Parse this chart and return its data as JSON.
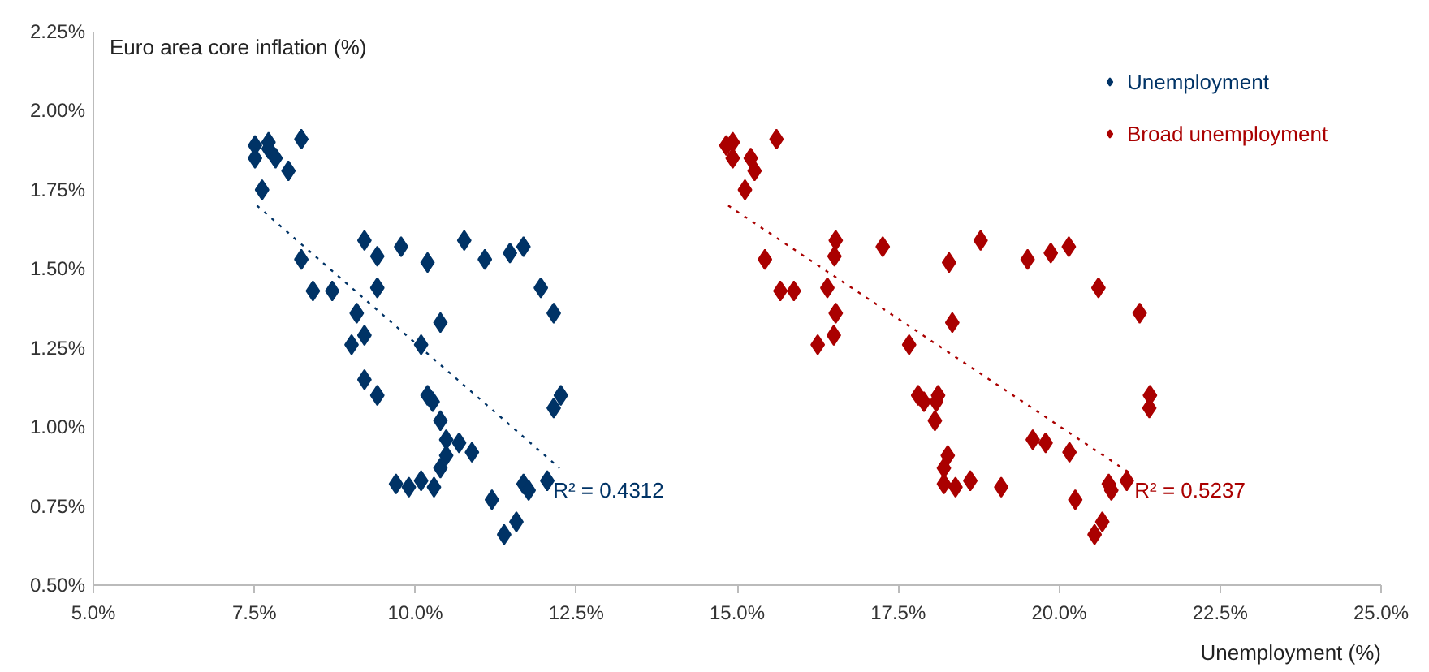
{
  "chart_data": {
    "type": "scatter",
    "xlabel": "Unemployment (%)",
    "ylabel": "Euro area core inflation  (%)",
    "xlim": [
      5,
      25
    ],
    "ylim": [
      0.5,
      2.25
    ],
    "xticks": [
      {
        "value": 5,
        "label": "5.0%"
      },
      {
        "value": 7.5,
        "label": "7.5%"
      },
      {
        "value": 10,
        "label": "10.0%"
      },
      {
        "value": 12.5,
        "label": "12.5%"
      },
      {
        "value": 15,
        "label": "15.0%"
      },
      {
        "value": 17.5,
        "label": "17.5%"
      },
      {
        "value": 20,
        "label": "20.0%"
      },
      {
        "value": 22.5,
        "label": "22.5%"
      },
      {
        "value": 25,
        "label": "25.0%"
      }
    ],
    "yticks": [
      {
        "value": 0.5,
        "label": "0.50%"
      },
      {
        "value": 0.75,
        "label": "0.75%"
      },
      {
        "value": 1.0,
        "label": "1.00%"
      },
      {
        "value": 1.25,
        "label": "1.25%"
      },
      {
        "value": 1.5,
        "label": "1.50%"
      },
      {
        "value": 1.75,
        "label": "1.75%"
      },
      {
        "value": 2.0,
        "label": "2.00%"
      },
      {
        "value": 2.25,
        "label": "2.25%"
      }
    ],
    "grid": false,
    "legend": "top right",
    "series": [
      {
        "name": "Unemployment",
        "color": "#003366",
        "marker": "diamond",
        "x": [
          7.51,
          7.51,
          7.72,
          7.72,
          7.83,
          8.23,
          8.03,
          7.62,
          9.21,
          9.78,
          10.76,
          9.41,
          10.19,
          11.08,
          11.47,
          11.68,
          8.23,
          8.41,
          8.71,
          9.41,
          11.95,
          12.15,
          9.09,
          10.39,
          9.21,
          9.01,
          10.09,
          9.21,
          9.41,
          10.19,
          10.27,
          12.26,
          12.15,
          10.39,
          10.48,
          10.68,
          10.48,
          10.88,
          10.39,
          9.7,
          9.9,
          10.09,
          10.29,
          11.19,
          11.68,
          11.76,
          12.05,
          11.57,
          11.38
        ],
        "values": [
          1.89,
          1.85,
          1.9,
          1.88,
          1.85,
          1.91,
          1.81,
          1.75,
          1.59,
          1.57,
          1.59,
          1.54,
          1.52,
          1.53,
          1.55,
          1.57,
          1.53,
          1.43,
          1.43,
          1.44,
          1.44,
          1.36,
          1.36,
          1.33,
          1.29,
          1.26,
          1.26,
          1.15,
          1.1,
          1.1,
          1.08,
          1.1,
          1.06,
          1.02,
          0.96,
          0.95,
          0.91,
          0.92,
          0.87,
          0.82,
          0.81,
          0.83,
          0.81,
          0.77,
          0.82,
          0.8,
          0.83,
          0.7,
          0.66
        ]
      },
      {
        "name": "Broad unemployment",
        "color": "#aa0000",
        "marker": "diamond",
        "x": [
          14.83,
          14.93,
          14.93,
          15.21,
          15.27,
          15.61,
          15.12,
          16.53,
          17.26,
          18.78,
          16.51,
          18.29,
          19.51,
          19.87,
          20.15,
          15.43,
          15.67,
          15.88,
          16.4,
          20.61,
          21.25,
          16.53,
          18.34,
          16.5,
          16.25,
          17.67,
          17.81,
          17.9,
          18.12,
          18.09,
          21.41,
          21.4,
          18.07,
          19.59,
          19.79,
          20.16,
          18.27,
          18.21,
          18.21,
          18.39,
          18.62,
          19.1,
          20.25,
          20.77,
          20.81,
          21.05,
          20.67,
          20.55
        ],
        "values": [
          1.89,
          1.9,
          1.85,
          1.85,
          1.81,
          1.91,
          1.75,
          1.59,
          1.57,
          1.59,
          1.54,
          1.52,
          1.53,
          1.55,
          1.57,
          1.53,
          1.43,
          1.43,
          1.44,
          1.44,
          1.36,
          1.36,
          1.33,
          1.29,
          1.26,
          1.26,
          1.1,
          1.08,
          1.1,
          1.08,
          1.1,
          1.06,
          1.02,
          0.96,
          0.95,
          0.92,
          0.91,
          0.87,
          0.82,
          0.81,
          0.83,
          0.81,
          0.77,
          0.82,
          0.8,
          0.83,
          0.7,
          0.66
        ]
      },
      {
        "type": "line",
        "color": "#003366",
        "line_style": "dotted",
        "x": [
          7.54,
          12.24
        ],
        "values": [
          1.7,
          0.87
        ]
      },
      {
        "type": "line",
        "color": "#aa0000",
        "line_style": "dotted",
        "x": [
          14.86,
          21.13
        ],
        "values": [
          1.7,
          0.85
        ]
      }
    ],
    "annotations": [
      {
        "text": "R² = 0.4312",
        "x": 12.14,
        "y": 0.8
      },
      {
        "text": "R² = 0.5237",
        "x": 21.17,
        "y": 0.8
      }
    ]
  }
}
